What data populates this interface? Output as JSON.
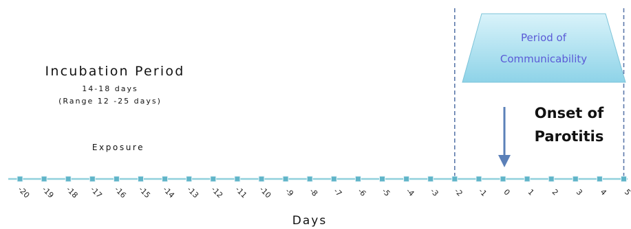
{
  "incubation": {
    "title": "Incubation Period",
    "duration": "14-18 days",
    "range": "(Range 12 -25 days)"
  },
  "exposure_label": "Exposure",
  "communicability": {
    "line1": "Period of",
    "line2": "Communicability",
    "start_day": -2,
    "end_day": 5
  },
  "onset": {
    "line1": "Onset of",
    "line2": "Parotitis",
    "day": 0
  },
  "axis": {
    "label": "Days",
    "ticks": [
      "-20",
      "-19",
      "-18",
      "-17",
      "-16",
      "-15",
      "-14",
      "-13",
      "-12",
      "-11",
      "-10",
      "-9",
      "-8",
      "-7",
      "-6",
      "-5",
      "-4",
      "-3",
      "-2",
      "-1",
      "0",
      "1",
      "2",
      "3",
      "4",
      "5"
    ]
  },
  "colors": {
    "axis_line": "#8fd0dc",
    "marker": "#5fb4c8",
    "dashed": "#5b78aa",
    "trapezoid_top": "#d9f3fa",
    "trapezoid_bottom": "#8ed3e8",
    "arrow": "#5b80b8"
  }
}
